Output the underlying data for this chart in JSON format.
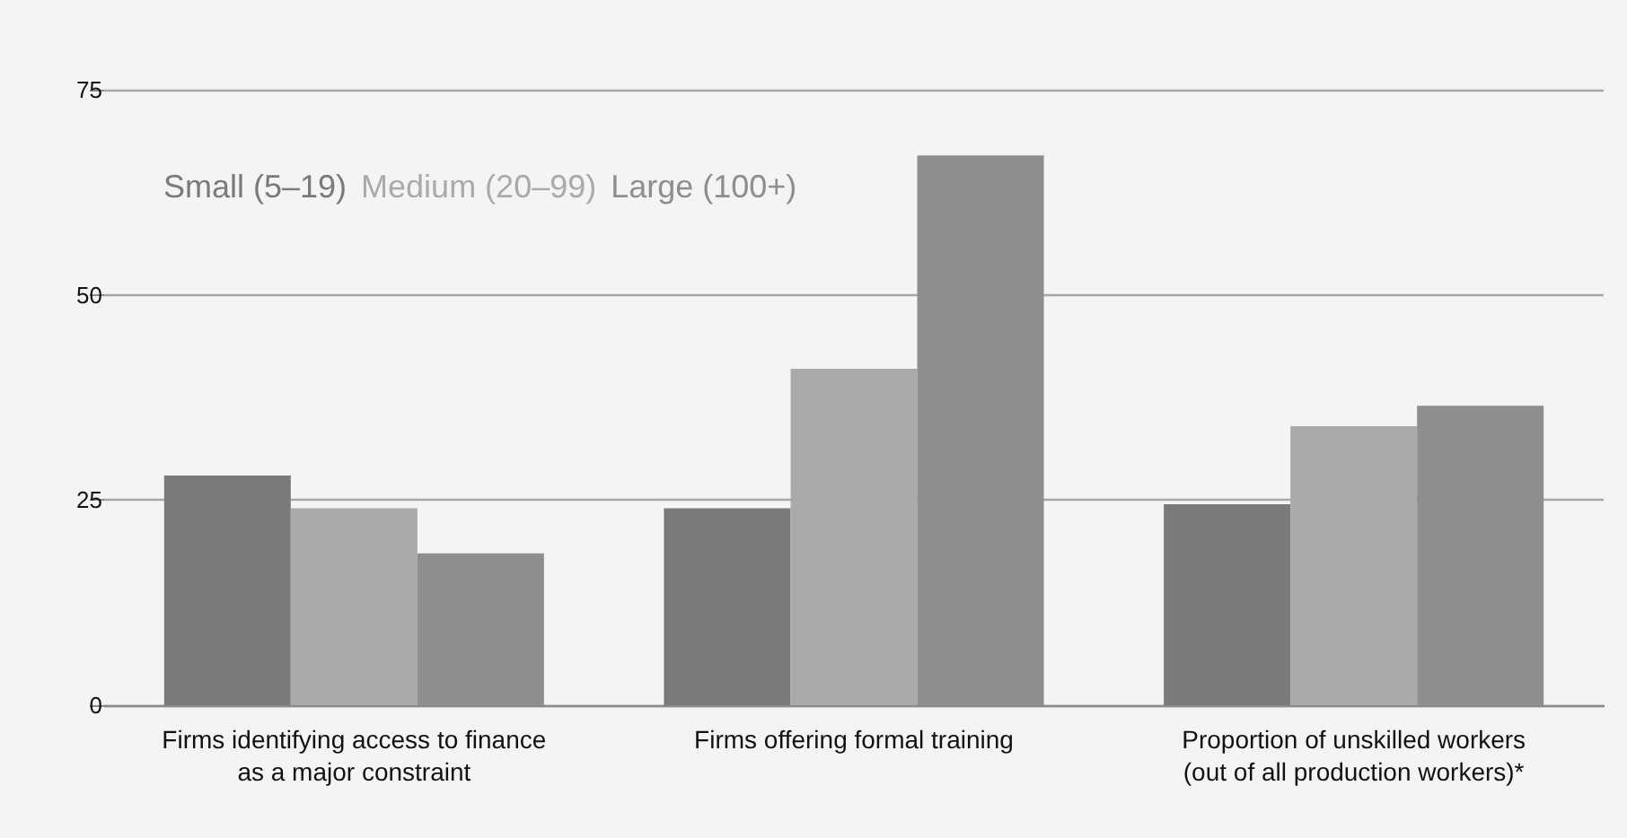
{
  "chart_data": {
    "type": "bar",
    "categories": [
      "Firms identifying access to finance\nas a major constraint",
      "Firms offering formal training",
      "Proportion of unskilled workers\n(out of all production workers)*"
    ],
    "series": [
      {
        "name": "Small (5–19)",
        "color": "#7a7a7a",
        "values": [
          28,
          24,
          24.5
        ]
      },
      {
        "name": "Medium (20–99)",
        "color": "#aaaaaa",
        "values": [
          24,
          41,
          34
        ]
      },
      {
        "name": "Large (100+)",
        "color": "#8e8e8e",
        "values": [
          18.5,
          67,
          36.5
        ]
      }
    ],
    "ylim": [
      0,
      75
    ],
    "yticks": [
      0,
      25,
      50,
      75
    ],
    "grid": "y",
    "legend": "top left"
  }
}
